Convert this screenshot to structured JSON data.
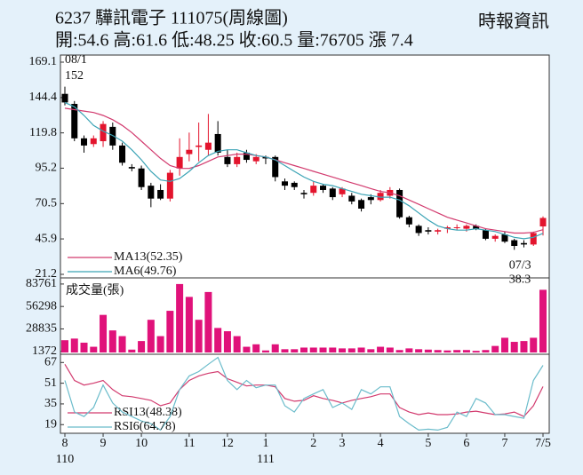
{
  "chart_data": [
    {
      "type": "candlestick",
      "title": "6237 驊訊電子 111075(周線圖)",
      "source": "時報資訊",
      "subtitle": "開:54.6 高:61.6 低:48.25 收:60.5 量:76705 漲 7.4",
      "open": [
        147,
        140,
        116,
        112,
        114,
        124,
        111,
        96,
        95,
        83,
        80,
        74,
        95,
        105,
        110,
        108,
        119,
        103,
        98,
        106,
        100,
        103,
        103,
        86,
        85,
        78,
        78,
        83,
        81,
        77,
        76,
        73,
        75,
        73,
        76,
        80,
        61,
        55,
        52,
        51,
        53,
        54,
        53,
        55,
        52,
        46,
        49,
        45,
        43,
        42,
        54.6
      ],
      "high": [
        152,
        142,
        118,
        118,
        128,
        127,
        113,
        98,
        97,
        85,
        84,
        94,
        116,
        120,
        127,
        133,
        128,
        108,
        106,
        108,
        105,
        104,
        104,
        88,
        86,
        80,
        86,
        84,
        82,
        82,
        78,
        74,
        77,
        80,
        82,
        81,
        62,
        56,
        54,
        53,
        55,
        56,
        56,
        56,
        53,
        49,
        51,
        46,
        45,
        51,
        61.6
      ],
      "low": [
        139,
        114,
        106,
        110,
        110,
        108,
        97,
        93,
        80,
        68,
        73,
        72,
        90,
        100,
        100,
        104,
        104,
        96,
        96,
        99,
        98,
        98,
        86,
        80,
        80,
        74,
        76,
        78,
        73,
        75,
        70,
        65,
        70,
        72,
        74,
        60,
        54,
        48,
        49,
        49,
        50,
        52,
        51,
        52,
        45,
        44,
        43,
        38.3,
        40,
        41,
        48.25
      ],
      "close": [
        141,
        116,
        111,
        116,
        126,
        111,
        99,
        95,
        82,
        74,
        74,
        92,
        103,
        108,
        111,
        113,
        106,
        98,
        103,
        101,
        103,
        102,
        89,
        83,
        82,
        77,
        83,
        80,
        75,
        81,
        72,
        67,
        73,
        78,
        80,
        61,
        56,
        50,
        51,
        52,
        54,
        54,
        55,
        53,
        46,
        48,
        44,
        41,
        42,
        50,
        60.5
      ],
      "up_color": "#e3142d",
      "down_color": "#000000",
      "high_date": "08/1",
      "low_date": "07/3",
      "ylim": [
        21.2,
        169.1
      ],
      "yticks": [
        169.1,
        144.4,
        119.8,
        95.2,
        70.5,
        45.9,
        21.2
      ],
      "series": [
        {
          "name": "MA13(52.35)",
          "color": "#d23a6e",
          "values": [
            137,
            136,
            135,
            134,
            132,
            129,
            125,
            120,
            114,
            108,
            102,
            97,
            95,
            95,
            97,
            100,
            103,
            104,
            105,
            105,
            104,
            103,
            101,
            99,
            97,
            95,
            93,
            91,
            89,
            87,
            85,
            83,
            81,
            79,
            78,
            76,
            73,
            70,
            67,
            64,
            61,
            59,
            57,
            55,
            53,
            52,
            51,
            50,
            50,
            50.5,
            52.35
          ]
        },
        {
          "name": "MA6(49.76)",
          "color": "#3aa3b5",
          "values": [
            141,
            138,
            132,
            125,
            121,
            118,
            114,
            108,
            101,
            93,
            87,
            86,
            88,
            93,
            99,
            104,
            107,
            108,
            108,
            106,
            104,
            103,
            101,
            97,
            93,
            89,
            86,
            84,
            83,
            81,
            79,
            77,
            76,
            75,
            75,
            73,
            69,
            64,
            59,
            55,
            53,
            52,
            52,
            53,
            52,
            51,
            49,
            47,
            46,
            47,
            49.76
          ]
        }
      ]
    },
    {
      "type": "bar",
      "title": "成交量(張)",
      "color": "#e0127a",
      "values": [
        15000,
        17000,
        12000,
        7000,
        46000,
        27000,
        20000,
        3500,
        14000,
        40000,
        20000,
        51000,
        83761,
        68000,
        40000,
        74000,
        30000,
        26000,
        20000,
        7000,
        10000,
        2500,
        10000,
        4000,
        4000,
        6000,
        6000,
        6000,
        6000,
        5000,
        5000,
        6000,
        4000,
        7000,
        6000,
        3000,
        5000,
        4000,
        3500,
        3000,
        2500,
        3000,
        3000,
        2000,
        3000,
        8000,
        18000,
        13000,
        14000,
        18000,
        76705
      ],
      "ylim": [
        0,
        88000
      ],
      "yticks": [
        83761,
        56298,
        28835,
        1372
      ]
    },
    {
      "type": "line",
      "categories": [
        "8",
        null,
        null,
        null,
        "9",
        null,
        null,
        null,
        "10",
        null,
        null,
        null,
        null,
        "11",
        null,
        null,
        null,
        "12",
        null,
        null,
        null,
        "1",
        null,
        null,
        null,
        null,
        "2",
        null,
        null,
        "3",
        null,
        null,
        null,
        "4",
        null,
        null,
        null,
        null,
        "5",
        null,
        null,
        null,
        "6",
        null,
        null,
        null,
        "7",
        null,
        null,
        null,
        "7/5"
      ],
      "category_years": [
        "110",
        null,
        null,
        null,
        null,
        null,
        null,
        null,
        null,
        null,
        null,
        null,
        null,
        null,
        null,
        null,
        null,
        null,
        null,
        null,
        null,
        "111",
        null,
        null,
        null,
        null,
        null,
        null,
        null,
        null,
        null,
        null,
        null,
        null,
        null,
        null,
        null,
        null,
        null,
        null,
        null,
        null,
        null,
        null,
        null,
        null,
        null,
        null,
        null,
        null,
        null
      ],
      "ylim": [
        13,
        72
      ],
      "yticks": [
        67,
        51,
        35,
        19
      ],
      "series": [
        {
          "name": "RSI13(48.38)",
          "color": "#d23a6e",
          "values": [
            65.6,
            53.1,
            49.6,
            51,
            53.1,
            46.1,
            41.3,
            40.6,
            39.2,
            37.8,
            33.6,
            35.7,
            46.1,
            53.1,
            56.6,
            58.7,
            60,
            54.5,
            51.7,
            48.9,
            49.6,
            49.6,
            48.2,
            39.2,
            37.1,
            37.8,
            41.3,
            39.2,
            37.8,
            35.7,
            37.8,
            39.2,
            40.6,
            42.7,
            42.7,
            32.2,
            28.7,
            26.7,
            28,
            26.7,
            26.7,
            27.3,
            28.7,
            29.4,
            28,
            26.7,
            27.3,
            28.7,
            25.3,
            33.6,
            48.38
          ]
        },
        {
          "name": "RSI6(64.78)",
          "color": "#6bbccb",
          "values": [
            53.1,
            28.7,
            25.3,
            32.2,
            49.6,
            35.7,
            28.7,
            25.3,
            21.8,
            19.7,
            14.8,
            25.3,
            46.1,
            56.6,
            60,
            65.6,
            71,
            53.1,
            46.1,
            53.1,
            47.5,
            49.6,
            49.6,
            33.6,
            28.7,
            39.2,
            42.7,
            46.1,
            32.2,
            35.7,
            30.8,
            46.1,
            42.7,
            48.2,
            48.2,
            25.3,
            19.7,
            14.8,
            15.5,
            14.8,
            16.9,
            28.7,
            25.3,
            39.2,
            35.7,
            26.7,
            26.7,
            25.3,
            23.9,
            53.1,
            64.78
          ]
        }
      ]
    }
  ]
}
